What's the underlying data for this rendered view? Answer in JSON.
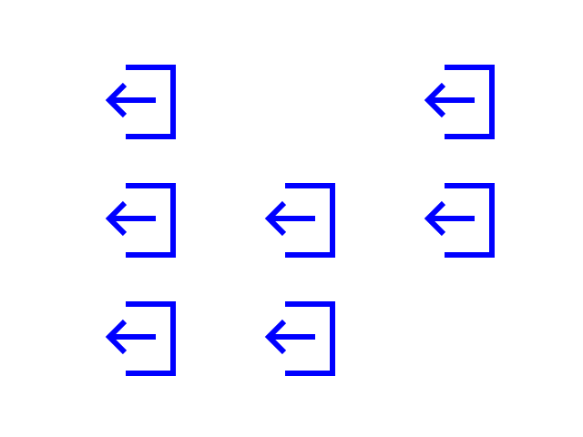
{
  "colors": {
    "background": "#ffffff",
    "icon": "#0000ff"
  },
  "icon_grid": {
    "rows": 3,
    "columns": 3,
    "icon": "login-arrow-icon",
    "cells": [
      {
        "row": 1,
        "col": 1,
        "icon": "login-arrow-icon"
      },
      {
        "row": 1,
        "col": 3,
        "icon": "login-arrow-icon"
      },
      {
        "row": 2,
        "col": 1,
        "icon": "login-arrow-icon"
      },
      {
        "row": 2,
        "col": 2,
        "icon": "login-arrow-icon"
      },
      {
        "row": 2,
        "col": 3,
        "icon": "login-arrow-icon"
      },
      {
        "row": 3,
        "col": 1,
        "icon": "login-arrow-icon"
      },
      {
        "row": 3,
        "col": 2,
        "icon": "login-arrow-icon"
      }
    ]
  }
}
